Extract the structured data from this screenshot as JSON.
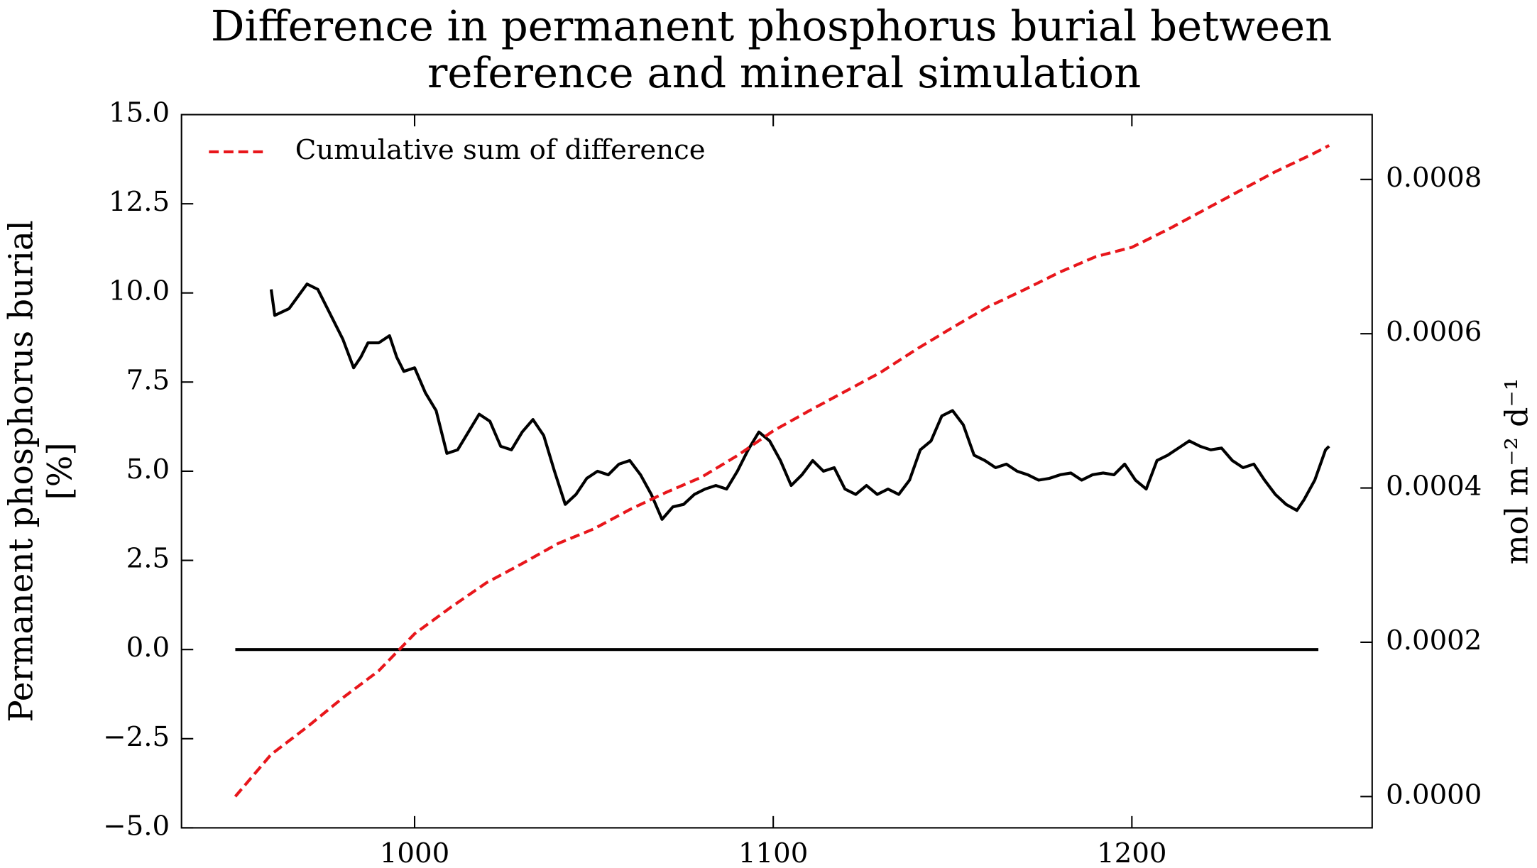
{
  "chart_data": {
    "type": "line",
    "title": [
      "Difference in permanent phosphorus burial between",
      "reference and mineral simulation"
    ],
    "ylabel": [
      "Permanent phosphorus burial",
      "[%]"
    ],
    "y2label": "mol m⁻² d⁻¹",
    "xlim": [
      935,
      1267
    ],
    "xticks": [
      1000,
      1100,
      1200
    ],
    "ylim": [
      -5,
      15
    ],
    "yticks": [
      {
        "value": -5,
        "label": "−5.0"
      },
      {
        "value": -2.5,
        "label": "−2.5"
      },
      {
        "value": 0,
        "label": "0.0"
      },
      {
        "value": 2.5,
        "label": "2.5"
      },
      {
        "value": 5,
        "label": "5.0"
      },
      {
        "value": 7.5,
        "label": "7.5"
      },
      {
        "value": 10,
        "label": "10.0"
      },
      {
        "value": 12.5,
        "label": "12.5"
      },
      {
        "value": 15,
        "label": "15.0"
      }
    ],
    "y2lim": [
      -4.06e-05,
      0.000884
    ],
    "y2ticks": [
      {
        "value": 0,
        "label": "0.0000"
      },
      {
        "value": 0.0002,
        "label": "0.0002"
      },
      {
        "value": 0.0004,
        "label": "0.0004"
      },
      {
        "value": 0.0006,
        "label": "0.0006"
      },
      {
        "value": 0.0008,
        "label": "0.0008"
      }
    ],
    "legend": "upper left",
    "series": [
      {
        "color": "#000000",
        "style": "solid",
        "x": [
          960,
          961,
          965,
          970,
          973,
          976,
          980,
          983,
          985,
          987,
          990,
          993,
          995,
          997,
          1000,
          1003,
          1006,
          1009,
          1012,
          1015,
          1018,
          1021,
          1024,
          1027,
          1030,
          1033,
          1036,
          1039,
          1042,
          1045,
          1048,
          1051,
          1054,
          1057,
          1060,
          1063,
          1066,
          1069,
          1072,
          1075,
          1078,
          1081,
          1084,
          1087,
          1090,
          1093,
          1096,
          1099,
          1102,
          1105,
          1108,
          1111,
          1114,
          1117,
          1120,
          1123,
          1126,
          1129,
          1132,
          1135,
          1138,
          1141,
          1144,
          1147,
          1150,
          1153,
          1156,
          1159,
          1162,
          1165,
          1168,
          1171,
          1174,
          1177,
          1180,
          1183,
          1186,
          1189,
          1192,
          1195,
          1198,
          1201,
          1204,
          1207,
          1210,
          1213,
          1216,
          1219,
          1222,
          1225,
          1228,
          1231,
          1234,
          1237,
          1240,
          1243,
          1246,
          1248,
          1251,
          1254,
          1255
        ],
        "values": [
          10.1,
          9.37,
          9.56,
          10.25,
          10.1,
          9.5,
          8.7,
          7.9,
          8.2,
          8.6,
          8.6,
          8.8,
          8.2,
          7.8,
          7.9,
          7.2,
          6.7,
          5.5,
          5.6,
          6.1,
          6.6,
          6.4,
          5.7,
          5.6,
          6.1,
          6.45,
          6.0,
          5.0,
          4.07,
          4.35,
          4.8,
          5.0,
          4.9,
          5.2,
          5.3,
          4.9,
          4.35,
          3.65,
          4.0,
          4.07,
          4.35,
          4.5,
          4.6,
          4.5,
          5.0,
          5.6,
          6.1,
          5.85,
          5.3,
          4.6,
          4.9,
          5.3,
          5.0,
          5.1,
          4.5,
          4.35,
          4.6,
          4.35,
          4.5,
          4.35,
          4.75,
          5.6,
          5.85,
          6.55,
          6.7,
          6.3,
          5.45,
          5.3,
          5.1,
          5.2,
          5.0,
          4.9,
          4.75,
          4.8,
          4.9,
          4.95,
          4.75,
          4.9,
          4.95,
          4.9,
          5.2,
          4.75,
          4.5,
          5.3,
          5.45,
          5.65,
          5.85,
          5.7,
          5.6,
          5.65,
          5.3,
          5.1,
          5.2,
          4.75,
          4.35,
          4.07,
          3.9,
          4.2,
          4.75,
          5.6,
          5.7
        ]
      },
      {
        "color": "#000000",
        "style": "solid",
        "x": [
          950,
          1252
        ],
        "values": [
          0,
          0
        ]
      },
      {
        "name": "Cumulative sum of difference",
        "color": "#e8161b",
        "style": "dashed",
        "axis": "y2",
        "x": [
          950,
          960,
          970,
          980,
          990,
          1000,
          1010,
          1020,
          1030,
          1040,
          1050,
          1060,
          1070,
          1080,
          1090,
          1100,
          1110,
          1120,
          1130,
          1140,
          1150,
          1160,
          1170,
          1180,
          1190,
          1200,
          1210,
          1220,
          1230,
          1240,
          1250,
          1255
        ],
        "values": [
          0,
          5.46e-05,
          9e-05,
          0.000128,
          0.000163,
          0.000211,
          0.000245,
          0.000277,
          0.000302,
          0.000328,
          0.000347,
          0.000372,
          0.000394,
          0.000414,
          0.000442,
          0.000474,
          0.0005,
          0.000525,
          0.00055,
          0.00058,
          0.000608,
          0.000635,
          0.000657,
          0.00068,
          0.0007,
          0.000712,
          0.000735,
          0.00076,
          0.000785,
          0.00081,
          0.000832,
          0.000844
        ]
      }
    ]
  }
}
